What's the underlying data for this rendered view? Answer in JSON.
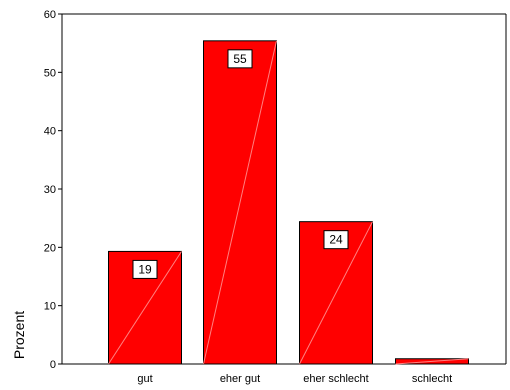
{
  "chart_data": {
    "type": "bar",
    "categories": [
      "gut",
      "eher gut",
      "eher schlecht",
      "schlecht"
    ],
    "values": [
      19.3,
      55.4,
      24.4,
      0.9
    ],
    "data_labels": [
      "19",
      "55",
      "24",
      ""
    ],
    "ylabel": "Prozent",
    "xlabel": "",
    "ylim": [
      0,
      60
    ],
    "yticks": [
      0,
      10,
      20,
      30,
      40,
      50,
      60
    ],
    "grid": false,
    "bar_color": "#ff0000"
  }
}
